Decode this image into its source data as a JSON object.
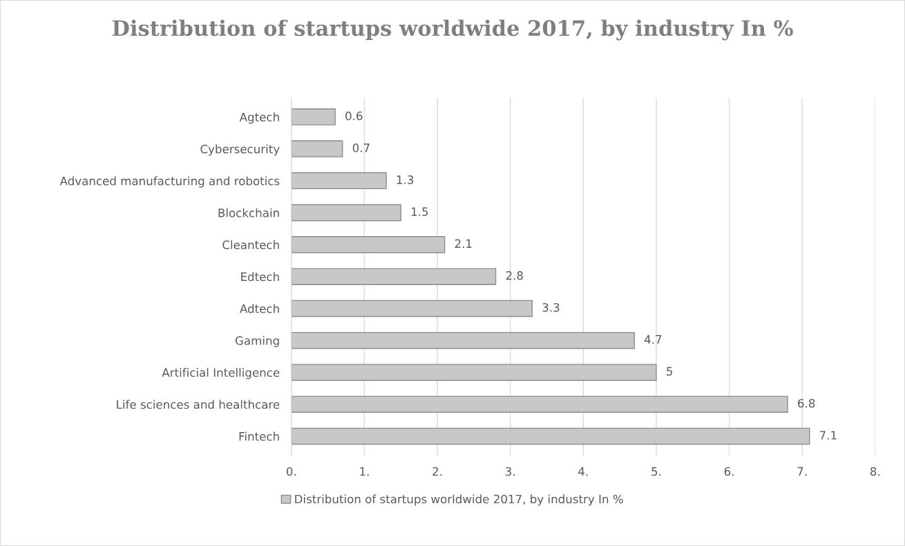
{
  "chart_data": {
    "type": "bar",
    "orientation": "horizontal",
    "title": "Distribution of startups worldwide 2017, by industry In %",
    "categories": [
      "Agtech",
      "Cybersecurity",
      "Advanced manufacturing and robotics",
      "Blockchain",
      "Cleantech",
      "Edtech",
      "Adtech",
      "Gaming",
      "Artificial Intelligence",
      "Life sciences and healthcare",
      "Fintech"
    ],
    "series": [
      {
        "name": "Distribution of startups worldwide 2017, by industry In %",
        "color": "#c8c8c8",
        "values": [
          0.6,
          0.7,
          1.3,
          1.5,
          2.1,
          2.8,
          3.3,
          4.7,
          5,
          6.8,
          7.1
        ]
      }
    ],
    "xlim": [
      0,
      8
    ],
    "xticks": [
      {
        "value": 0,
        "label": "0."
      },
      {
        "value": 1,
        "label": "1."
      },
      {
        "value": 2,
        "label": "2."
      },
      {
        "value": 3,
        "label": "3."
      },
      {
        "value": 4,
        "label": "4."
      },
      {
        "value": 5,
        "label": "5."
      },
      {
        "value": 6,
        "label": "6."
      },
      {
        "value": 7,
        "label": "7."
      },
      {
        "value": 8,
        "label": "8."
      }
    ],
    "grid": "x",
    "legend": "bottom",
    "data_labels": true
  }
}
